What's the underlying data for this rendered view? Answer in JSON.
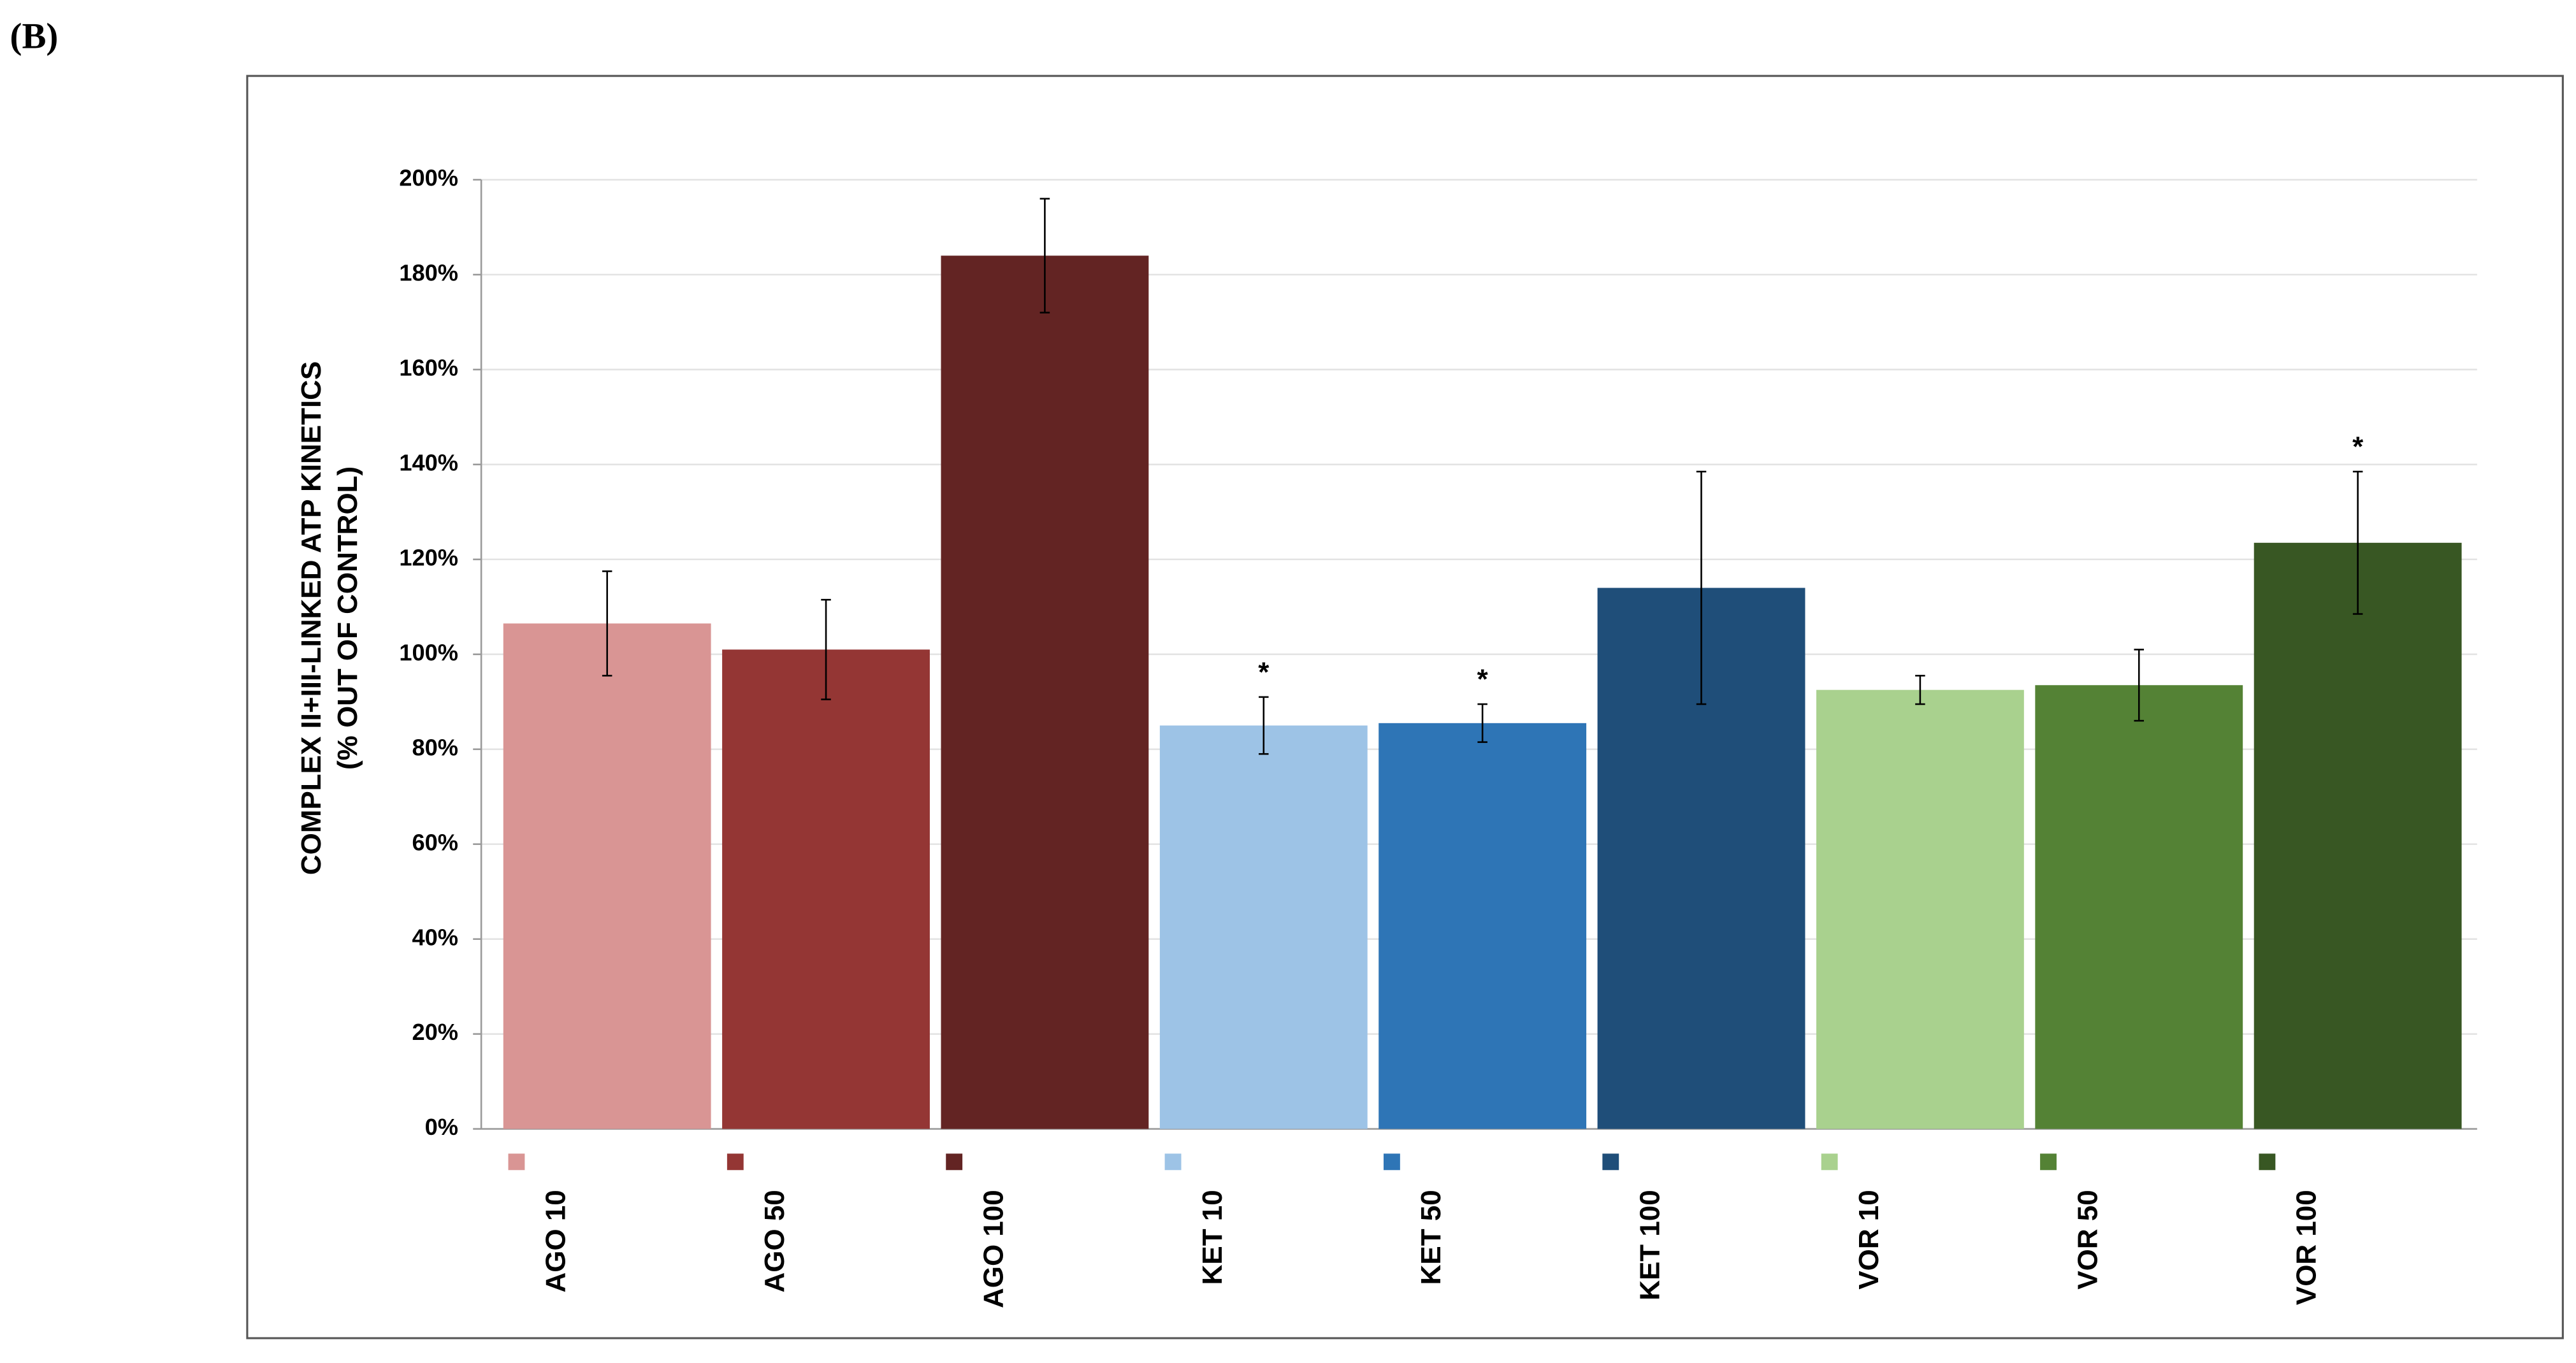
{
  "panel_label": "(B)",
  "chart_data": {
    "type": "bar",
    "ylabel": [
      "COMPLEX II+III-LINKED ATP KINETICS",
      "(% OUT OF CONTROL)"
    ],
    "categories": [
      "AGO 10",
      "AGO 50",
      "AGO 100",
      "KET 10",
      "KET 50",
      "KET 100",
      "VOR 10",
      "VOR 50",
      "VOR 100"
    ],
    "values": [
      106.5,
      101,
      184,
      85,
      85.5,
      114,
      92.5,
      93.5,
      123.5
    ],
    "errors": [
      11,
      10.5,
      12,
      6,
      4,
      24.5,
      3,
      7.5,
      15
    ],
    "significance": [
      null,
      null,
      null,
      "*",
      "*",
      null,
      null,
      null,
      "*"
    ],
    "colors": [
      "#d99594",
      "#943634",
      "#632423",
      "#9dc3e6",
      "#2e75b6",
      "#1f4e79",
      "#a9d18e",
      "#548235",
      "#385723"
    ],
    "ylim": [
      0,
      200
    ],
    "yticks": [
      {
        "value": 0,
        "label": "0%"
      },
      {
        "value": 20,
        "label": "20%"
      },
      {
        "value": 40,
        "label": "40%"
      },
      {
        "value": 60,
        "label": "60%"
      },
      {
        "value": 80,
        "label": "80%"
      },
      {
        "value": 100,
        "label": "100%"
      },
      {
        "value": 120,
        "label": "120%"
      },
      {
        "value": 140,
        "label": "140%"
      },
      {
        "value": 160,
        "label": "160%"
      },
      {
        "value": 180,
        "label": "180%"
      },
      {
        "value": 200,
        "label": "200%"
      }
    ],
    "grid": true
  }
}
